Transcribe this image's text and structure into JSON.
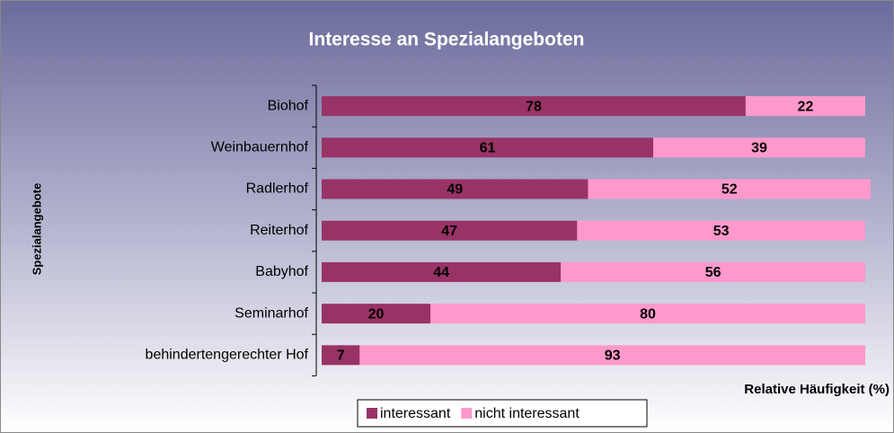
{
  "chart_data": {
    "type": "stacked-barh",
    "title": "Interesse an Spezialangeboten",
    "y_label": "Spezialangebote",
    "x_label": "Relative Häufigkeit (%)",
    "categories": [
      "Biohof",
      "Weinbauernhof",
      "Radlerhof",
      "Reiterhof",
      "Babyhof",
      "Seminarhof",
      "behindertengerechter Hof"
    ],
    "series": [
      {
        "name": "interessant",
        "color": "#993366",
        "values": [
          78,
          61,
          49,
          47,
          44,
          20,
          7
        ]
      },
      {
        "name": "nicht interessant",
        "color": "#ff99cc",
        "values": [
          22,
          39,
          52,
          53,
          56,
          80,
          93
        ]
      }
    ],
    "xlim": [
      0,
      100
    ],
    "legend": "bottom"
  }
}
